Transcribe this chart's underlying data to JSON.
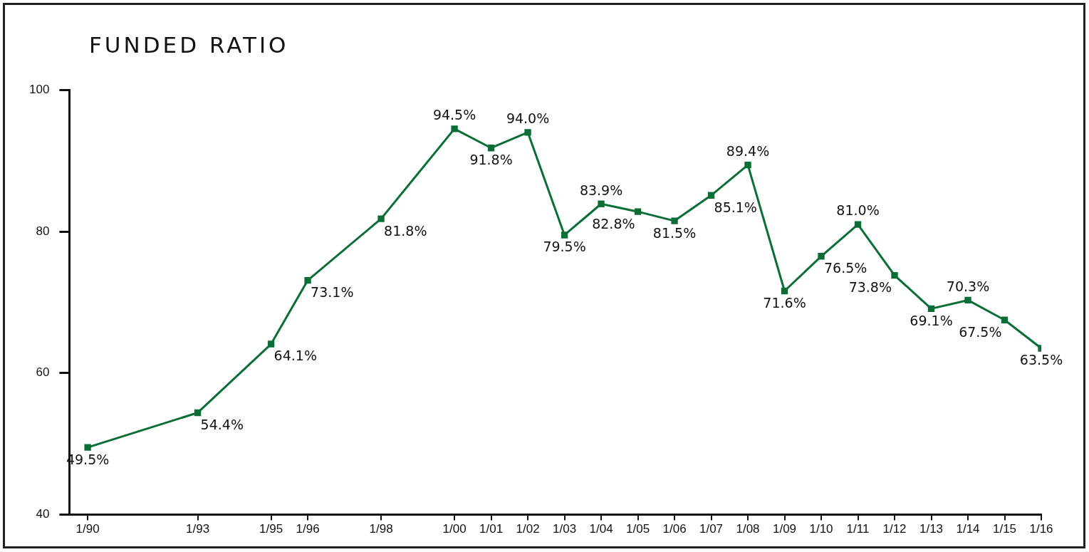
{
  "chart_data": {
    "type": "line",
    "title": "FUNDED RATIO",
    "x": [
      "1990-01",
      "1993-01",
      "1995-01",
      "1996-01",
      "1998-01",
      "2000-01",
      "2001-01",
      "2002-01",
      "2003-01",
      "2004-01",
      "2005-01",
      "2006-01",
      "2007-01",
      "2008-01",
      "2009-01",
      "2010-01",
      "2011-01",
      "2012-01",
      "2013-01",
      "2014-01",
      "2015-01",
      "2016-01"
    ],
    "series": [
      {
        "color": "#0a6e36",
        "values": [
          49.5,
          54.4,
          64.1,
          73.1,
          81.8,
          94.5,
          91.8,
          94.0,
          79.5,
          83.9,
          82.8,
          81.5,
          85.1,
          89.4,
          71.6,
          76.5,
          81.0,
          73.8,
          69.1,
          70.3,
          67.5,
          63.5
        ],
        "value_labels": [
          "49.5%",
          "54.4%",
          "64.1%",
          "73.1%",
          "81.8%",
          "94.5%",
          "91.8%",
          "94.0%",
          "79.5%",
          "83.9%",
          "82.8%",
          "81.5%",
          "85.1%",
          "89.4%",
          "71.6%",
          "76.5%",
          "81.0%",
          "73.8%",
          "69.1%",
          "70.3%",
          "67.5%",
          "63.5%"
        ]
      }
    ],
    "xlim": [
      "1989-07",
      "2016-01"
    ],
    "xticks": [
      {
        "value": "1990-01",
        "label": "1/90"
      },
      {
        "value": "1993-01",
        "label": "1/93"
      },
      {
        "value": "1995-01",
        "label": "1/95"
      },
      {
        "value": "1996-01",
        "label": "1/96"
      },
      {
        "value": "1998-01",
        "label": "1/98"
      },
      {
        "value": "2000-01",
        "label": "1/00"
      },
      {
        "value": "2001-01",
        "label": "1/01"
      },
      {
        "value": "2002-01",
        "label": "1/02"
      },
      {
        "value": "2003-01",
        "label": "1/03"
      },
      {
        "value": "2004-01",
        "label": "1/04"
      },
      {
        "value": "2005-01",
        "label": "1/05"
      },
      {
        "value": "2006-01",
        "label": "1/06"
      },
      {
        "value": "2007-01",
        "label": "1/07"
      },
      {
        "value": "2008-01",
        "label": "1/08"
      },
      {
        "value": "2009-01",
        "label": "1/09"
      },
      {
        "value": "2010-01",
        "label": "1/10"
      },
      {
        "value": "2011-01",
        "label": "1/11"
      },
      {
        "value": "2012-01",
        "label": "1/12"
      },
      {
        "value": "2013-01",
        "label": "1/13"
      },
      {
        "value": "2014-01",
        "label": "1/14"
      },
      {
        "value": "2015-01",
        "label": "1/15"
      },
      {
        "value": "2016-01",
        "label": "1/16"
      }
    ],
    "ylim": [
      40,
      100
    ],
    "yticks": [
      40,
      60,
      80,
      100
    ],
    "grid": false,
    "legend": false,
    "marker": "square",
    "line_style": "solid"
  }
}
